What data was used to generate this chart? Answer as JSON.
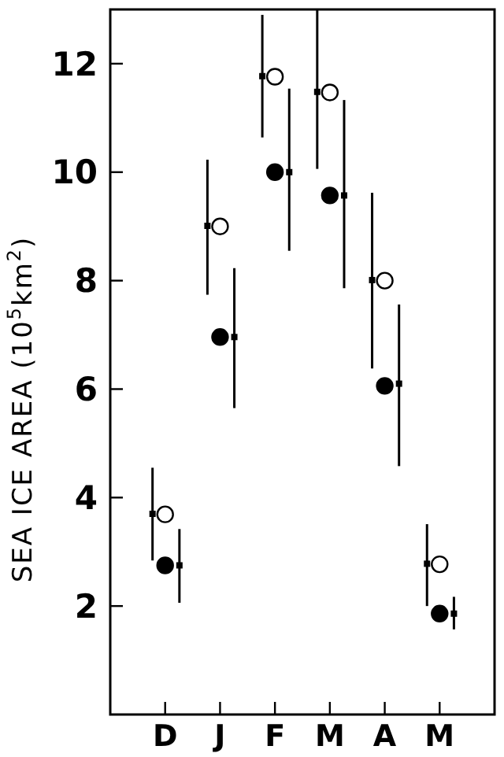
{
  "chart_data": {
    "type": "scatter",
    "ylabel": "SEA ICE AREA (10$^{5}$km$^{2}$)",
    "categories": [
      "D",
      "J",
      "F",
      "M",
      "A",
      "M"
    ],
    "ylim": [
      0,
      13
    ],
    "yticks": [
      2,
      4,
      6,
      8,
      10,
      12
    ],
    "grid": false,
    "marker": "circle",
    "series": [
      {
        "color": "#000000",
        "marker": "square",
        "values": [
          3.7,
          9.01,
          11.77,
          11.48,
          8.01,
          2.78
        ],
        "errors": [
          [
            2.84,
            4.55
          ],
          [
            7.74,
            10.23
          ],
          [
            10.64,
            12.9
          ],
          [
            10.06,
            12.99
          ],
          [
            6.38,
            9.62
          ],
          [
            2.0,
            3.51
          ]
        ]
      },
      {
        "color": "#ffffff",
        "values": [
          3.69,
          9.0,
          11.76,
          11.47,
          8.0,
          2.77
        ]
      },
      {
        "color": "#000000",
        "values": [
          2.75,
          6.96,
          10.0,
          9.57,
          6.06,
          1.86
        ]
      },
      {
        "color": "#000000",
        "marker": "square",
        "values": [
          2.75,
          6.96,
          10.0,
          9.57,
          6.1,
          1.86
        ],
        "errors": [
          [
            2.06,
            3.42
          ],
          [
            5.65,
            8.23
          ],
          [
            8.55,
            11.54
          ],
          [
            7.86,
            11.33
          ],
          [
            4.58,
            7.56
          ],
          [
            1.57,
            2.17
          ]
        ]
      }
    ]
  }
}
